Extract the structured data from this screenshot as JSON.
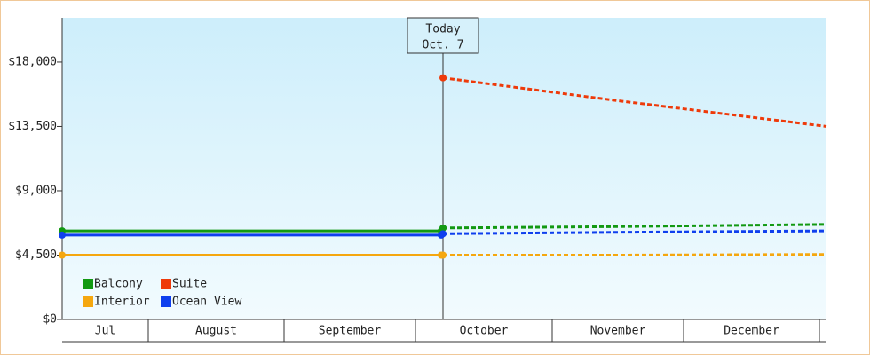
{
  "chart_data": {
    "type": "line",
    "categories": [
      "Jul",
      "August",
      "September",
      "October",
      "November",
      "December"
    ],
    "today_label": [
      "Today",
      "Oct. 7"
    ],
    "ylim": [
      0,
      21100
    ],
    "yticks": [
      {
        "value": 0,
        "label": "$0"
      },
      {
        "value": 4500,
        "label": "$4,500"
      },
      {
        "value": 9000,
        "label": "$9,000"
      },
      {
        "value": 13500,
        "label": "$13,500"
      },
      {
        "value": 18000,
        "label": "$18,000"
      }
    ],
    "history_count": 3,
    "series": [
      {
        "name": "Balcony",
        "color": "#129912",
        "values": [
          6200,
          6200,
          6200,
          6400,
          6500,
          6650
        ]
      },
      {
        "name": "Suite",
        "color": "#ee3a0a",
        "values": [
          null,
          null,
          null,
          16900,
          15300,
          13500
        ]
      },
      {
        "name": "Interior",
        "color": "#f5a70f",
        "values": [
          4500,
          4500,
          4500,
          4500,
          4500,
          4550
        ]
      },
      {
        "name": "Ocean View",
        "color": "#0f3fee",
        "values": [
          5900,
          5900,
          5900,
          6000,
          6100,
          6200
        ]
      }
    ],
    "legend": "bottom-left",
    "grid": false
  }
}
